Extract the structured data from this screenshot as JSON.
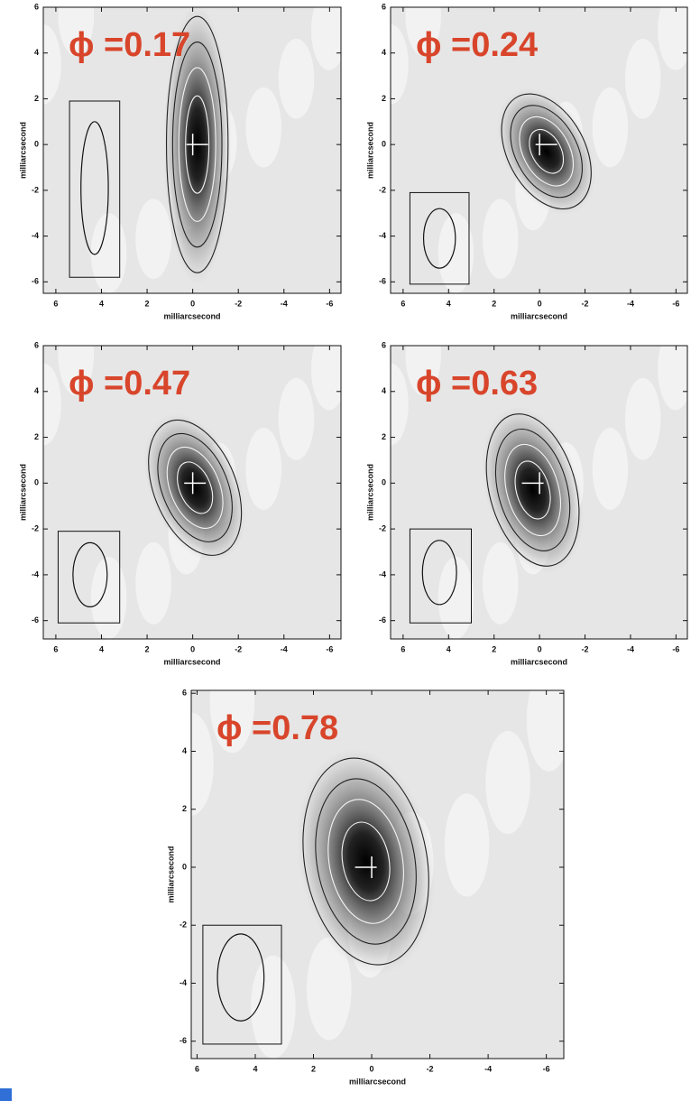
{
  "chart_data": [
    {
      "type": "contour",
      "title": "ϕ =0.17",
      "xlabel": "milliarcsecond",
      "ylabel": "milliarcsecond",
      "xlim": [
        6.55,
        -6.5
      ],
      "ylim": [
        -6.5,
        6.0
      ],
      "xticks": [
        6,
        4,
        2,
        0,
        -2,
        -4,
        -6
      ],
      "yticks": [
        -6,
        -4,
        -2,
        0,
        2,
        4,
        6
      ]
    },
    {
      "type": "contour",
      "title": "ϕ =0.24",
      "xlabel": "milliarcsecond",
      "ylabel": "milliarcsecond",
      "xlim": [
        6.55,
        -6.5
      ],
      "ylim": [
        -6.5,
        6.0
      ],
      "xticks": [
        6,
        4,
        2,
        0,
        -2,
        -4,
        -6
      ],
      "yticks": [
        -6,
        -4,
        -2,
        0,
        2,
        4,
        6
      ]
    },
    {
      "type": "contour",
      "title": "ϕ =0.47",
      "xlabel": "milliarcsecond",
      "ylabel": "milliarcsecond",
      "xlim": [
        6.55,
        -6.5
      ],
      "ylim": [
        -6.8,
        6.0
      ],
      "xticks": [
        6,
        4,
        2,
        0,
        -2,
        -4,
        -6
      ],
      "yticks": [
        -6,
        -4,
        -2,
        0,
        2,
        4,
        6
      ]
    },
    {
      "type": "contour",
      "title": "ϕ =0.63",
      "xlabel": "milliarcsecond",
      "ylabel": "milliarcsecond",
      "xlim": [
        6.55,
        -6.5
      ],
      "ylim": [
        -6.8,
        6.0
      ],
      "xticks": [
        6,
        4,
        2,
        0,
        -2,
        -4,
        -6
      ],
      "yticks": [
        -6,
        -4,
        -2,
        0,
        2,
        4,
        6
      ]
    },
    {
      "type": "contour",
      "title": "ϕ =0.78",
      "xlabel": "milliarcsecond",
      "ylabel": "milliarcsecond",
      "xlim": [
        6.2,
        -6.6
      ],
      "ylim": [
        -6.6,
        6.1
      ],
      "xticks": [
        6,
        4,
        2,
        0,
        -2,
        -4,
        -6
      ],
      "yticks": [
        -6,
        -4,
        -2,
        0,
        2,
        4,
        6
      ]
    }
  ]
}
